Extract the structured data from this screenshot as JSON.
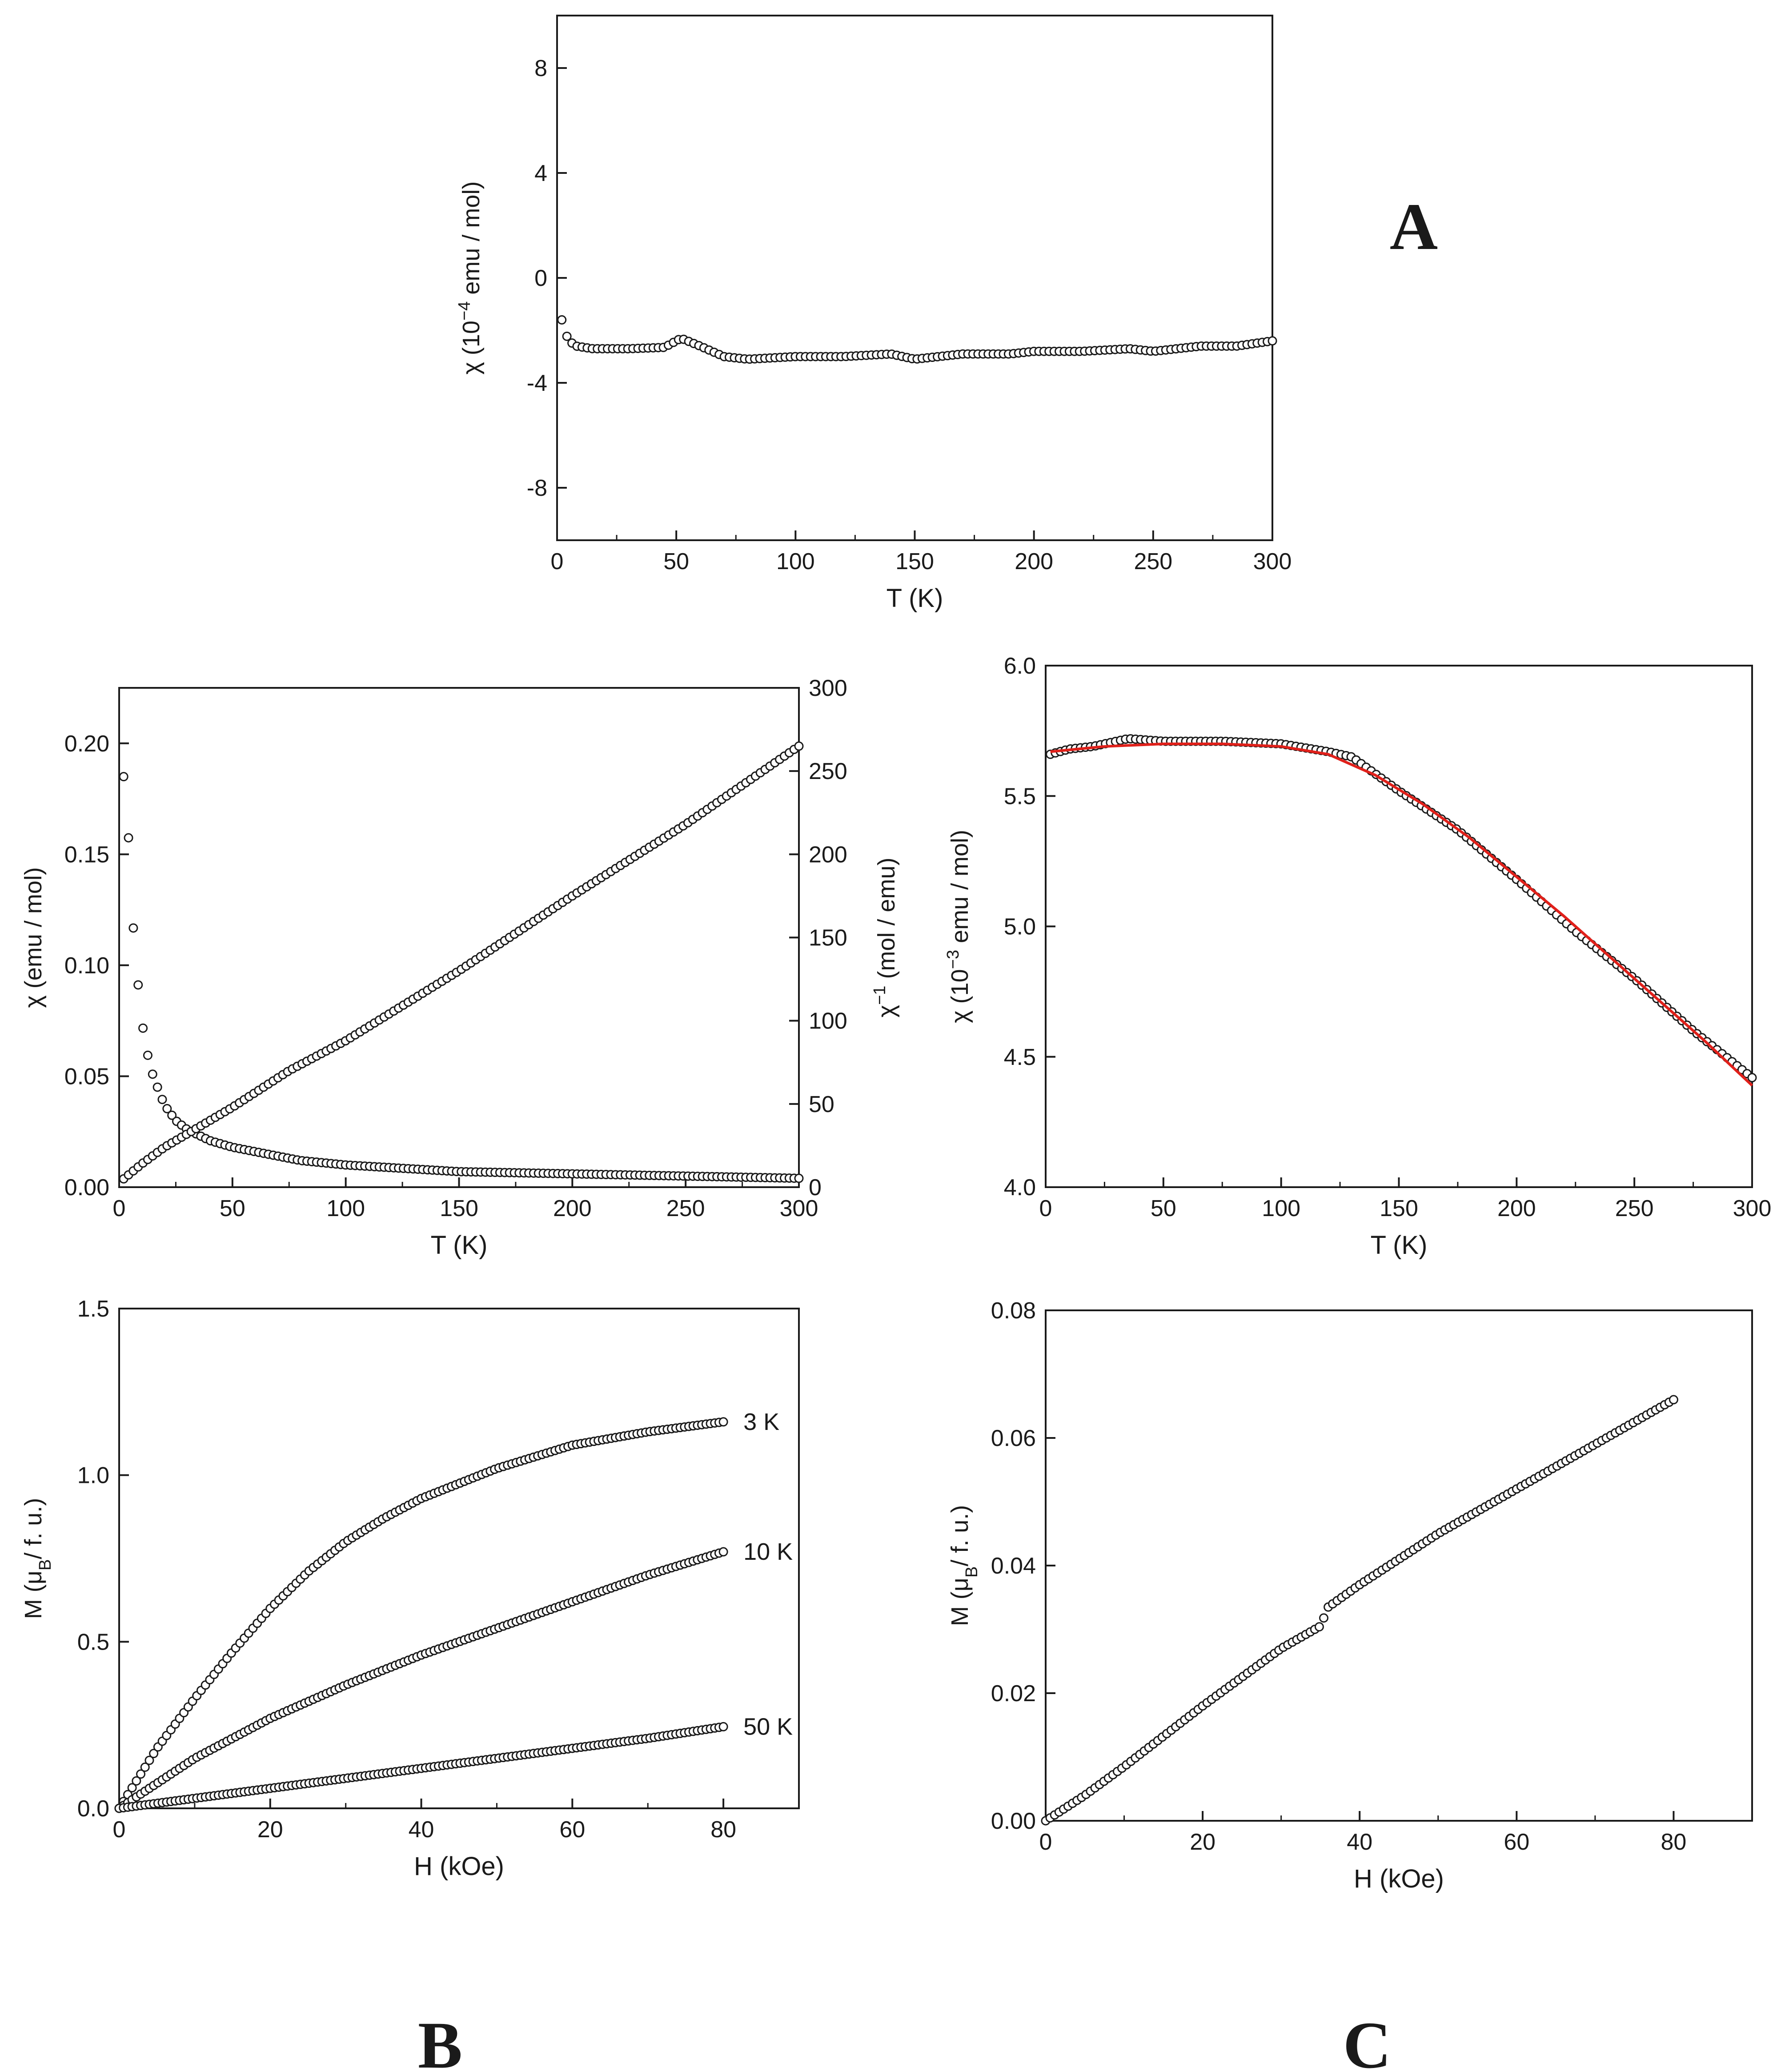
{
  "colors": {
    "ink": "#1a1a1a",
    "marker_fill": "#ffffff",
    "fit_line": "#e0201a"
  },
  "panel_labels": {
    "a": "A",
    "b": "B",
    "c": "C"
  },
  "chart_data": [
    {
      "id": "A",
      "type": "scatter",
      "xlabel": "T (K)",
      "ylabel_prefix": "χ (10",
      "ylabel_sup": "−4",
      "ylabel_suffix": " emu / mol)",
      "xlim": [
        0,
        300
      ],
      "ylim": [
        -10,
        10
      ],
      "xticks": [
        "0",
        "50",
        "100",
        "150",
        "200",
        "250",
        "300"
      ],
      "yticks": [
        "8",
        "4",
        "0",
        "-4",
        "-8"
      ],
      "series": [
        {
          "name": "chi",
          "x": [
            2,
            3,
            5,
            8,
            15,
            30,
            45,
            52,
            60,
            70,
            80,
            100,
            120,
            140,
            150,
            170,
            190,
            200,
            220,
            240,
            250,
            270,
            285,
            300
          ],
          "y": [
            -1.6,
            -2.0,
            -2.4,
            -2.6,
            -2.7,
            -2.7,
            -2.65,
            -2.3,
            -2.6,
            -3.0,
            -3.1,
            -3.0,
            -3.0,
            -2.9,
            -3.1,
            -2.9,
            -2.9,
            -2.8,
            -2.8,
            -2.7,
            -2.8,
            -2.6,
            -2.6,
            -2.4
          ]
        }
      ]
    },
    {
      "id": "B-top",
      "type": "scatter",
      "xlabel": "T (K)",
      "ylabel_left_text": "χ (emu / mol)",
      "ylabel_right_prefix": "χ",
      "ylabel_right_sup": "−1",
      "ylabel_right_suffix": " (mol / emu)",
      "xlim": [
        0,
        300
      ],
      "ylim_left": [
        0,
        0.225
      ],
      "ylim_right": [
        0,
        300
      ],
      "xticks": [
        "0",
        "50",
        "100",
        "150",
        "200",
        "250",
        "300"
      ],
      "yticks_left": [
        "0.00",
        "0.05",
        "0.10",
        "0.15",
        "0.20"
      ],
      "yticks_right": [
        "0",
        "50",
        "100",
        "150",
        "200",
        "250",
        "300"
      ],
      "series": [
        {
          "name": "chi",
          "axis": "left",
          "x": [
            2,
            3,
            4,
            5,
            6,
            8,
            10,
            12,
            15,
            20,
            25,
            30,
            40,
            50,
            60,
            80,
            100,
            150,
            200,
            250,
            300
          ],
          "y": [
            0.185,
            0.175,
            0.16,
            0.14,
            0.12,
            0.095,
            0.075,
            0.062,
            0.05,
            0.037,
            0.03,
            0.026,
            0.021,
            0.018,
            0.016,
            0.012,
            0.01,
            0.007,
            0.006,
            0.005,
            0.004
          ]
        },
        {
          "name": "chi_inverse",
          "axis": "right",
          "x": [
            2,
            10,
            20,
            30,
            50,
            75,
            100,
            150,
            200,
            250,
            300
          ],
          "y": [
            5,
            14,
            24,
            32,
            48,
            70,
            88,
            130,
            175,
            218,
            265
          ]
        }
      ]
    },
    {
      "id": "C-top",
      "type": "scatter",
      "xlabel": "T (K)",
      "ylabel_prefix": "χ (10",
      "ylabel_sup": "−3",
      "ylabel_suffix": " emu / mol)",
      "xlim": [
        0,
        300
      ],
      "ylim": [
        4.0,
        6.0
      ],
      "xticks": [
        "0",
        "50",
        "100",
        "150",
        "200",
        "250",
        "300"
      ],
      "yticks": [
        "4.0",
        "4.5",
        "5.0",
        "5.5",
        "6.0"
      ],
      "series": [
        {
          "name": "chi",
          "x": [
            2,
            10,
            20,
            35,
            50,
            75,
            100,
            120,
            130,
            150,
            175,
            200,
            225,
            250,
            275,
            300
          ],
          "y": [
            5.66,
            5.68,
            5.69,
            5.72,
            5.71,
            5.71,
            5.7,
            5.67,
            5.65,
            5.52,
            5.37,
            5.18,
            4.98,
            4.8,
            4.6,
            4.42
          ]
        },
        {
          "name": "fit",
          "line": true,
          "x": [
            2,
            25,
            50,
            75,
            100,
            120,
            140,
            160,
            180,
            200,
            220,
            240,
            260,
            280,
            300
          ],
          "y": [
            5.67,
            5.69,
            5.7,
            5.7,
            5.69,
            5.66,
            5.58,
            5.47,
            5.34,
            5.19,
            5.04,
            4.88,
            4.72,
            4.56,
            4.39
          ]
        }
      ]
    },
    {
      "id": "B-bottom",
      "type": "scatter",
      "xlabel": "H (kOe)",
      "ylabel_prefix": "M (μ",
      "ylabel_sub": "B",
      "ylabel_suffix": "/ f. u.)",
      "xlim": [
        0,
        90
      ],
      "ylim": [
        0,
        1.5
      ],
      "xticks": [
        "0",
        "20",
        "40",
        "60",
        "80"
      ],
      "yticks": [
        "0.0",
        "0.5",
        "1.0",
        "1.5"
      ],
      "series": [
        {
          "name": "3 K",
          "x": [
            0,
            5,
            10,
            15,
            20,
            25,
            30,
            35,
            40,
            50,
            60,
            70,
            80
          ],
          "y": [
            0,
            0.18,
            0.33,
            0.47,
            0.6,
            0.71,
            0.8,
            0.87,
            0.93,
            1.02,
            1.09,
            1.13,
            1.16
          ]
        },
        {
          "name": "10 K",
          "x": [
            0,
            10,
            20,
            30,
            40,
            50,
            60,
            70,
            80
          ],
          "y": [
            0,
            0.15,
            0.27,
            0.37,
            0.46,
            0.54,
            0.62,
            0.7,
            0.77
          ]
        },
        {
          "name": "50 K",
          "x": [
            0,
            10,
            20,
            30,
            40,
            50,
            60,
            70,
            80
          ],
          "y": [
            0,
            0.03,
            0.06,
            0.09,
            0.12,
            0.15,
            0.18,
            0.21,
            0.245
          ]
        }
      ]
    },
    {
      "id": "C-bottom",
      "type": "scatter",
      "xlabel": "H (kOe)",
      "ylabel_prefix": "M (μ",
      "ylabel_sub": "B",
      "ylabel_suffix": "/ f. u.)",
      "xlim": [
        0,
        90
      ],
      "ylim": [
        0,
        0.08
      ],
      "xticks": [
        "0",
        "20",
        "40",
        "60",
        "80"
      ],
      "yticks": [
        "0.00",
        "0.02",
        "0.04",
        "0.06",
        "0.08"
      ],
      "series": [
        {
          "name": "M",
          "x": [
            0,
            5,
            10,
            20,
            30,
            35,
            36,
            40,
            50,
            60,
            70,
            80
          ],
          "y": [
            0,
            0.004,
            0.0085,
            0.018,
            0.027,
            0.0305,
            0.0335,
            0.037,
            0.045,
            0.052,
            0.059,
            0.066
          ]
        }
      ]
    }
  ]
}
